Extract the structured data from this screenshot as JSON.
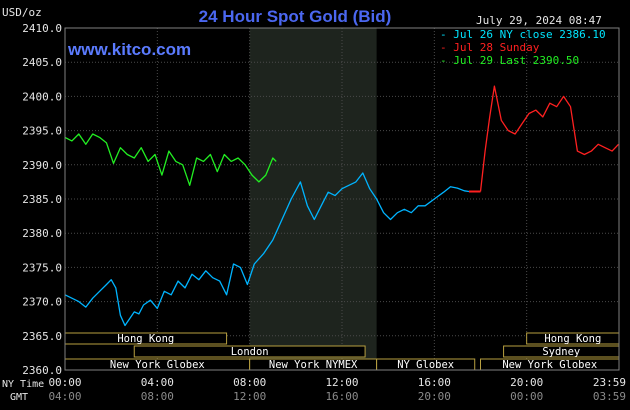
{
  "chart_data": {
    "type": "line",
    "title": "24 Hour Spot Gold (Bid)",
    "watermark": "www.kitco.com",
    "y_unit_label": "USD/oz",
    "timestamp": "July 29, 2024 08:47",
    "ylim": [
      2360.0,
      2410.0
    ],
    "y_ticks": [
      "2410.0",
      "2405.0",
      "2400.0",
      "2395.0",
      "2390.0",
      "2385.0",
      "2380.0",
      "2375.0",
      "2370.0",
      "2365.0",
      "2360.0"
    ],
    "x_row1_label": "NY Time",
    "x_row2_label": "GMT",
    "x_ticks_ny": [
      "00:00",
      "04:00",
      "08:00",
      "12:00",
      "16:00",
      "20:00",
      "23:59"
    ],
    "x_ticks_gmt": [
      "04:00",
      "08:00",
      "12:00",
      "16:00",
      "20:00",
      "00:00",
      "03:59"
    ],
    "grid": true,
    "shaded_region_hours": [
      8.0,
      13.5
    ],
    "legend": [
      {
        "text": "Jul 26 NY close 2386.10",
        "color": "#00e5ff"
      },
      {
        "text": "Jul 28 Sunday",
        "color": "#ff2020"
      },
      {
        "text": "Jul 29 Last 2390.50",
        "color": "#22ee22"
      }
    ],
    "series": [
      {
        "color": "#00b4ff",
        "x": [
          0,
          0.3,
          0.6,
          0.9,
          1.2,
          1.5,
          1.8,
          2.0,
          2.2,
          2.4,
          2.6,
          2.8,
          3.0,
          3.2,
          3.4,
          3.7,
          4.0,
          4.3,
          4.6,
          4.9,
          5.2,
          5.5,
          5.8,
          6.1,
          6.4,
          6.7,
          7.0,
          7.3,
          7.6,
          7.9,
          8.2,
          8.6,
          9.0,
          9.4,
          9.8,
          10.2,
          10.5,
          10.8,
          11.1,
          11.4,
          11.7,
          12.0,
          12.3,
          12.6,
          12.9,
          13.2,
          13.5,
          13.8,
          14.1,
          14.4,
          14.7,
          15.0,
          15.3,
          15.6,
          16.0,
          16.4,
          16.7,
          17.0,
          17.3,
          17.5
        ],
        "y": [
          2371.0,
          2370.5,
          2370.0,
          2369.2,
          2370.5,
          2371.5,
          2372.5,
          2373.2,
          2372.0,
          2368.0,
          2366.5,
          2367.5,
          2368.5,
          2368.2,
          2369.5,
          2370.2,
          2369.0,
          2371.5,
          2371.0,
          2373.0,
          2372.0,
          2374.0,
          2373.2,
          2374.5,
          2373.5,
          2373.0,
          2371.0,
          2375.5,
          2375.0,
          2372.5,
          2375.5,
          2377.0,
          2379.0,
          2382.0,
          2385.0,
          2387.5,
          2384.0,
          2382.0,
          2384.0,
          2386.0,
          2385.5,
          2386.5,
          2387.0,
          2387.5,
          2388.8,
          2386.5,
          2385.0,
          2383.0,
          2382.0,
          2383.0,
          2383.5,
          2383.0,
          2384.0,
          2384.0,
          2385.0,
          2386.0,
          2386.8,
          2386.6,
          2386.2,
          2386.1
        ]
      },
      {
        "color": "#ff2020",
        "x": [
          18.0,
          18.2,
          18.4,
          18.6,
          18.9,
          19.2,
          19.5,
          19.8,
          20.1,
          20.4,
          20.7,
          21.0,
          21.3,
          21.6,
          21.9,
          22.2,
          22.5,
          22.8,
          23.1,
          23.4,
          23.7,
          23.98
        ],
        "y": [
          2386.1,
          2392.0,
          2397.0,
          2401.5,
          2396.5,
          2395.0,
          2394.5,
          2396.0,
          2397.5,
          2398.0,
          2397.0,
          2399.0,
          2398.5,
          2400.0,
          2398.5,
          2392.0,
          2391.5,
          2392.0,
          2393.0,
          2392.5,
          2392.0,
          2393.0
        ]
      },
      {
        "color": "#22ee22",
        "x": [
          0,
          0.3,
          0.6,
          0.9,
          1.2,
          1.5,
          1.8,
          2.1,
          2.4,
          2.7,
          3.0,
          3.3,
          3.6,
          3.9,
          4.2,
          4.5,
          4.8,
          5.1,
          5.4,
          5.7,
          6.0,
          6.3,
          6.6,
          6.9,
          7.2,
          7.5,
          7.8,
          8.1,
          8.4,
          8.7,
          9.0,
          9.15
        ],
        "y": [
          2394.0,
          2393.5,
          2394.5,
          2393.0,
          2394.5,
          2394.0,
          2393.2,
          2390.2,
          2392.5,
          2391.5,
          2391.0,
          2392.5,
          2390.5,
          2391.5,
          2388.5,
          2392.0,
          2390.5,
          2390.0,
          2387.0,
          2391.0,
          2390.5,
          2391.5,
          2389.0,
          2391.5,
          2390.5,
          2391.0,
          2390.0,
          2388.5,
          2387.5,
          2388.5,
          2391.0,
          2390.5
        ]
      },
      {
        "color": "#ff2020",
        "x": [
          17.5,
          18.0
        ],
        "y": [
          2386.1,
          2386.1
        ]
      }
    ],
    "sessions": [
      {
        "label": "Hong Kong",
        "start": 0.0,
        "end": 7.0
      },
      {
        "label": "London",
        "start": 3.0,
        "end": 13.0
      },
      {
        "label": "New York Globex",
        "start": 0.0,
        "end": 8.0
      },
      {
        "label": "New York NYMEX",
        "start": 8.0,
        "end": 13.5
      },
      {
        "label": "NY Globex",
        "start": 13.5,
        "end": 17.75
      },
      {
        "label": "Hong Kong",
        "start": 20.0,
        "end": 24.0
      },
      {
        "label": "Sydney",
        "start": 19.0,
        "end": 24.0
      },
      {
        "label": "New York Globex",
        "start": 18.0,
        "end": 24.0
      }
    ]
  }
}
